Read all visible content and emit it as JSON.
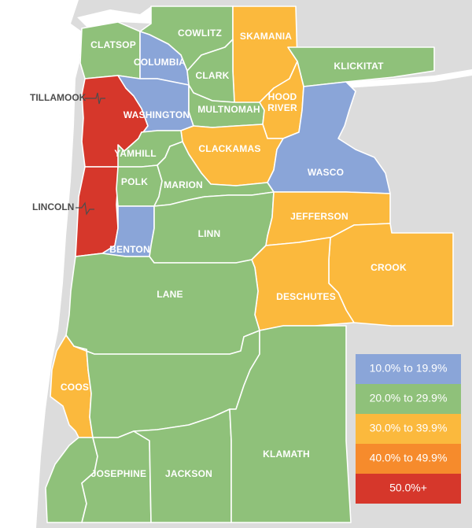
{
  "colors": {
    "background_land": "#dcdcdc",
    "water": "#ffffff",
    "tier_10_19": "#8aa5d8",
    "tier_20_29": "#8fc17a",
    "tier_30_39": "#fbb93d",
    "tier_40_49": "#f68b2c",
    "tier_50_plus": "#d6372b"
  },
  "legend": {
    "items": [
      {
        "label": "10.0% to 19.9%",
        "color": "#8aa5d8"
      },
      {
        "label": "20.0% to 29.9%",
        "color": "#8fc17a"
      },
      {
        "label": "30.0% to 39.9%",
        "color": "#fbb93d"
      },
      {
        "label": "40.0% to 49.9%",
        "color": "#f68b2c"
      },
      {
        "label": "50.0%+",
        "color": "#d6372b"
      }
    ]
  },
  "counties": [
    {
      "name": "CLATSOP",
      "tier": "20.0% to 29.9%"
    },
    {
      "name": "COWLITZ",
      "tier": "20.0% to 29.9%"
    },
    {
      "name": "SKAMANIA",
      "tier": "30.0% to 39.9%"
    },
    {
      "name": "COLUMBIA",
      "tier": "10.0% to 19.9%"
    },
    {
      "name": "CLARK",
      "tier": "20.0% to 29.9%"
    },
    {
      "name": "KLICKITAT",
      "tier": "20.0% to 29.9%"
    },
    {
      "name": "TILLAMOOK",
      "tier": "50.0%+"
    },
    {
      "name": "HOOD RIVER",
      "tier": "30.0% to 39.9%"
    },
    {
      "name": "WASHINGTON",
      "tier": "10.0% to 19.9%"
    },
    {
      "name": "MULTNOMAH",
      "tier": "20.0% to 29.9%"
    },
    {
      "name": "CLACKAMAS",
      "tier": "30.0% to 39.9%"
    },
    {
      "name": "YAMHILL",
      "tier": "20.0% to 29.9%"
    },
    {
      "name": "WASCO",
      "tier": "10.0% to 19.9%"
    },
    {
      "name": "POLK",
      "tier": "20.0% to 29.9%"
    },
    {
      "name": "MARION",
      "tier": "20.0% to 29.9%"
    },
    {
      "name": "LINCOLN",
      "tier": "50.0%+"
    },
    {
      "name": "JEFFERSON",
      "tier": "30.0% to 39.9%"
    },
    {
      "name": "LINN",
      "tier": "20.0% to 29.9%"
    },
    {
      "name": "BENTON",
      "tier": "10.0% to 19.9%"
    },
    {
      "name": "CROOK",
      "tier": "30.0% to 39.9%"
    },
    {
      "name": "LANE",
      "tier": "20.0% to 29.9%"
    },
    {
      "name": "DESCHUTES",
      "tier": "30.0% to 39.9%"
    },
    {
      "name": "COOS",
      "tier": "30.0% to 39.9%"
    },
    {
      "name": "KLAMATH",
      "tier": "20.0% to 29.9%"
    },
    {
      "name": "JOSEPHINE",
      "tier": "20.0% to 29.9%"
    },
    {
      "name": "JACKSON",
      "tier": "20.0% to 29.9%"
    }
  ]
}
